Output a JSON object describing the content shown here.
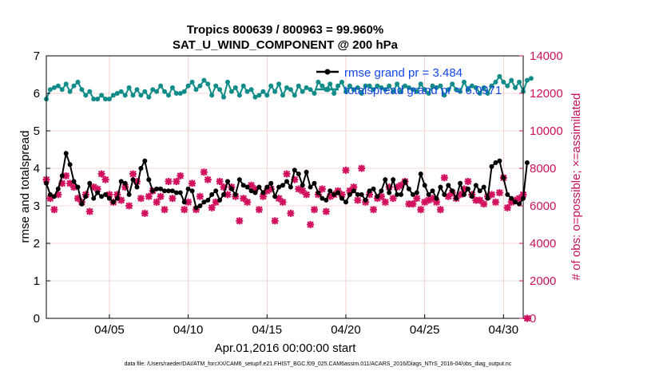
{
  "chart_data": {
    "type": "line",
    "title": "Tropics 800639 / 800963 = 99.960%",
    "subtitle": "SAT_U_WIND_COMPONENT @ 200 hPa",
    "xlabel": "Apr.01,2016 00:00:00 start",
    "ylabel": "rmse and totalspread",
    "y2label": "# of obs: o=possible; ×=assimilated",
    "footer": "data file: /Users/raeder/DAI/ATM_forcXX/CAM6_setup/f.e21.FHIST_BGC.f09_025.CAM6assim.011/ACARS_2016/Diags_NTrS_2016-04/obs_diag_output.nc",
    "x_ticks": [
      {
        "day": 5,
        "label": "04/05"
      },
      {
        "day": 10,
        "label": "04/10"
      },
      {
        "day": 15,
        "label": "04/15"
      },
      {
        "day": 20,
        "label": "04/20"
      },
      {
        "day": 25,
        "label": "04/25"
      },
      {
        "day": 30,
        "label": "04/30"
      }
    ],
    "xlim": [
      1.0,
      31.25
    ],
    "ylim": [
      0,
      7
    ],
    "y_ticks": [
      "0",
      "1",
      "2",
      "3",
      "4",
      "5",
      "6",
      "7"
    ],
    "y2lim": [
      0,
      14000
    ],
    "y2_ticks": [
      "0",
      "2000",
      "4000",
      "6000",
      "8000",
      "10000",
      "12000",
      "14000"
    ],
    "grid": true,
    "legend_position": "top-right",
    "legend": {
      "rmse": "rmse grand pr = 3.484",
      "spread": "totalspread grand pr = 6.0971"
    },
    "colors": {
      "rmse": "#000000",
      "spread": "#118c88",
      "obs": "#d1105e",
      "legend_text": "#1347e6",
      "grid": "#f2c8c8"
    },
    "series": [
      {
        "name": "rmse",
        "axis": "left",
        "x_start": 1.0,
        "x_step": 0.25,
        "values": [
          3.6,
          3.3,
          3.25,
          3.45,
          3.8,
          4.4,
          4.1,
          3.65,
          3.5,
          3.05,
          3.25,
          3.6,
          3.2,
          3.35,
          3.25,
          3.3,
          3.2,
          3.1,
          3.2,
          3.65,
          3.6,
          3.3,
          3.7,
          3.5,
          4.0,
          4.2,
          3.7,
          3.4,
          3.45,
          3.45,
          3.4,
          3.4,
          3.4,
          3.35,
          3.35,
          3.1,
          3.45,
          3.4,
          2.95,
          3.0,
          3.1,
          3.15,
          3.3,
          3.4,
          3.15,
          3.3,
          3.65,
          3.45,
          3.3,
          3.7,
          3.55,
          3.5,
          3.4,
          3.35,
          3.5,
          3.35,
          3.5,
          3.6,
          3.25,
          3.5,
          3.55,
          3.65,
          3.5,
          3.95,
          3.85,
          3.55,
          3.9,
          3.5,
          3.6,
          3.35,
          3.2,
          3.15,
          3.4,
          3.3,
          3.35,
          3.2,
          3.1,
          3.3,
          3.4,
          3.3,
          3.3,
          3.15,
          3.4,
          3.45,
          3.25,
          3.4,
          3.7,
          3.35,
          3.7,
          3.3,
          3.3,
          3.65,
          3.45,
          3.3,
          3.35,
          3.85,
          3.55,
          3.3,
          3.4,
          3.2,
          3.5,
          3.3,
          3.55,
          3.4,
          3.2,
          3.6,
          3.3,
          3.45,
          3.25,
          3.55,
          3.4,
          3.5,
          3.2,
          4.05,
          4.15,
          4.2,
          3.75,
          3.3,
          3.2,
          3.1,
          3.05,
          3.2,
          4.15
        ]
      },
      {
        "name": "totalspread",
        "axis": "left",
        "x_start": 1.0,
        "x_step": 0.25,
        "values": [
          5.85,
          6.1,
          6.15,
          6.2,
          6.1,
          6.25,
          6.05,
          6.2,
          6.3,
          6.1,
          5.95,
          6.05,
          5.85,
          5.85,
          5.95,
          5.85,
          5.85,
          5.95,
          6.0,
          6.05,
          5.95,
          6.15,
          5.95,
          6.1,
          5.95,
          6.05,
          5.9,
          6.1,
          6.05,
          6.2,
          6.05,
          5.95,
          6.15,
          6.0,
          6.0,
          6.05,
          6.2,
          6.3,
          6.1,
          6.2,
          6.35,
          6.25,
          5.95,
          6.2,
          6.1,
          5.9,
          6.3,
          6.05,
          6.15,
          5.95,
          6.2,
          6.05,
          6.1,
          5.9,
          5.95,
          6.05,
          5.95,
          6.2,
          6.05,
          6.25,
          5.95,
          6.15,
          6.1,
          5.95,
          6.2,
          6.05,
          6.15,
          6.1,
          6.0,
          6.3,
          6.2,
          6.1,
          6.25,
          6.0,
          6.2,
          6.3,
          6.05,
          6.2,
          6.1,
          6.15,
          6.0,
          6.2,
          6.2,
          6.1,
          6.2,
          6.15,
          6.1,
          6.2,
          6.05,
          6.25,
          6.05,
          6.2,
          6.15,
          6.1,
          6.05,
          6.25,
          6.1,
          6.0,
          6.2,
          6.15,
          6.2,
          5.95,
          6.1,
          6.25,
          6.1,
          6.05,
          6.3,
          6.1,
          6.2,
          6.15,
          6.0,
          6.15,
          6.0,
          6.2,
          6.3,
          6.45,
          6.3,
          6.2,
          6.35,
          6.15,
          6.3,
          6.05,
          6.35,
          6.4
        ]
      },
      {
        "name": "obs count",
        "axis": "right",
        "x_start": 1.0,
        "x_step": 0.25,
        "values": [
          7400,
          6400,
          5800,
          6600,
          7200,
          7600,
          7200,
          7000,
          6400,
          6200,
          6600,
          5700,
          7000,
          6900,
          7700,
          7400,
          6600,
          6200,
          6600,
          6300,
          7000,
          6000,
          7700,
          7300,
          6400,
          5600,
          6500,
          6800,
          6200,
          6500,
          5800,
          7300,
          6400,
          7300,
          7600,
          5800,
          6200,
          7200,
          5800,
          6500,
          7800,
          7400,
          5900,
          6200,
          7300,
          7000,
          6600,
          7000,
          6500,
          5200,
          6400,
          6200,
          7100,
          6900,
          5800,
          6500,
          6800,
          6900,
          5200,
          6400,
          6200,
          7700,
          5600,
          7400,
          6900,
          6800,
          6600,
          5000,
          5800,
          6600,
          6900,
          5700,
          6500,
          6600,
          6800,
          6600,
          7900,
          6800,
          7000,
          6300,
          8000,
          6200,
          6600,
          5800,
          6400,
          6500,
          6200,
          7000,
          6400,
          7000,
          7100,
          7300,
          6100,
          6100,
          6400,
          5800,
          6200,
          6300,
          6400,
          6200,
          5800,
          7500,
          6500,
          6700,
          6400,
          6600,
          6900,
          7300,
          6600,
          6300,
          6300,
          6100,
          6500,
          6600,
          6200,
          6700,
          7500,
          5900,
          6200,
          6300,
          6400,
          6600,
          0
        ]
      }
    ]
  }
}
